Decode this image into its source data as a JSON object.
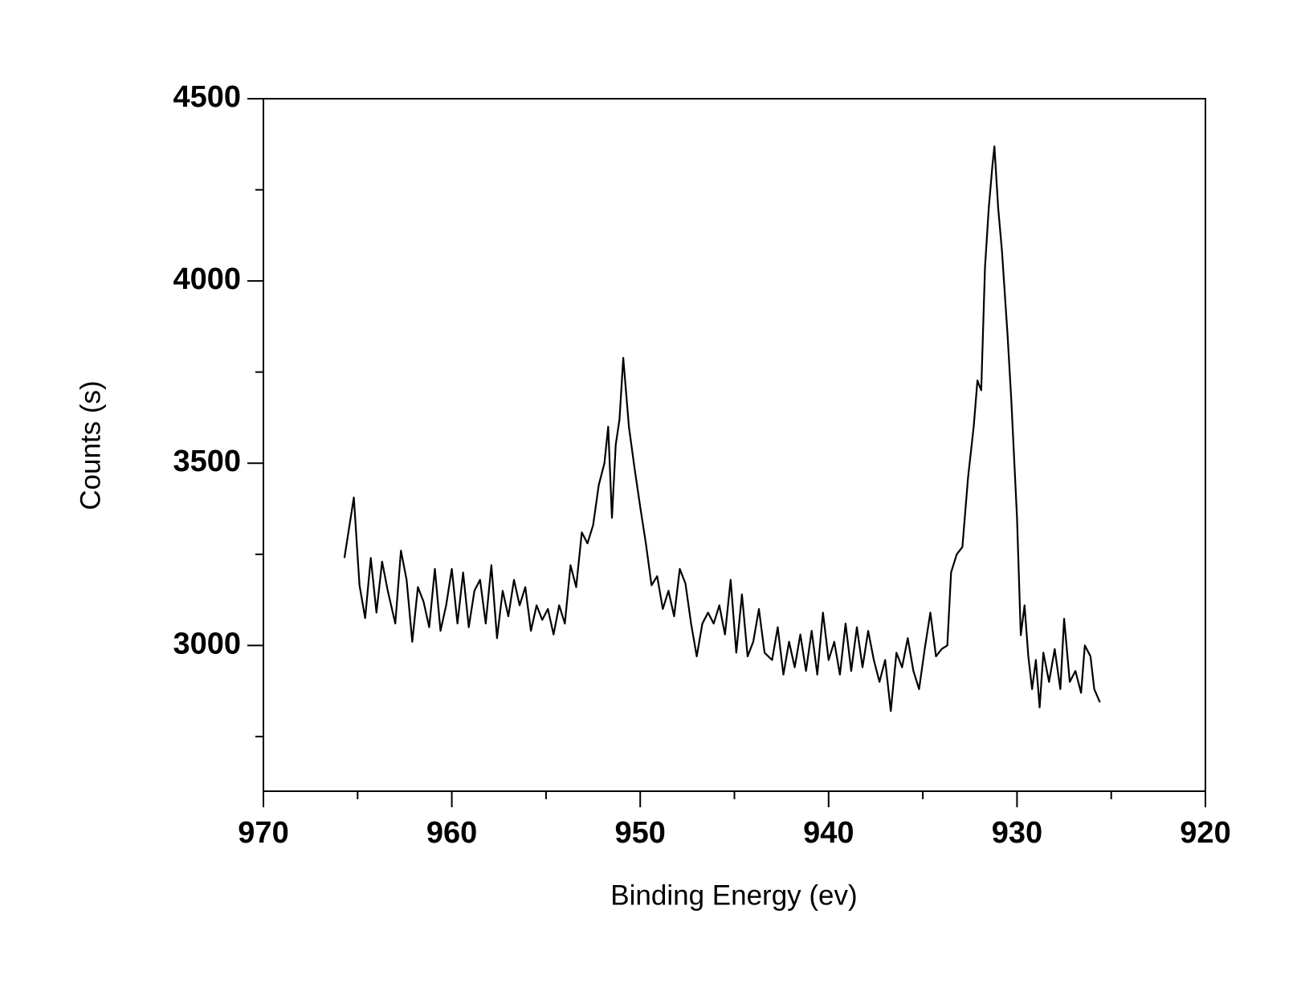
{
  "chart_data": {
    "type": "line",
    "x_label": "Binding Energy (ev)",
    "y_label": "Counts (s)",
    "xlim": [
      970,
      920
    ],
    "xticks": [
      970,
      960,
      950,
      940,
      930,
      920
    ],
    "xminorticks": [
      965,
      955,
      945,
      935,
      925
    ],
    "ylim": [
      2600,
      4500
    ],
    "yticks": [
      3000,
      3500,
      4000,
      4500
    ],
    "yminorticks": [
      2750,
      3250,
      3750,
      4250
    ],
    "grid": false,
    "series": [
      {
        "color": "#000000",
        "x": [
          965.7,
          965.2,
          964.9,
          964.6,
          964.3,
          964.0,
          963.7,
          963.4,
          963.0,
          962.7,
          962.4,
          962.1,
          961.8,
          961.5,
          961.2,
          960.9,
          960.6,
          960.3,
          960.0,
          959.7,
          959.4,
          959.1,
          958.8,
          958.5,
          958.2,
          957.9,
          957.6,
          957.3,
          957.0,
          956.7,
          956.4,
          956.1,
          955.8,
          955.5,
          955.2,
          954.9,
          954.6,
          954.3,
          954.0,
          953.7,
          953.4,
          953.1,
          952.8,
          952.5,
          952.2,
          951.9,
          951.7,
          951.5,
          951.3,
          951.1,
          950.9,
          950.6,
          950.3,
          950.0,
          949.7,
          949.4,
          949.1,
          948.8,
          948.5,
          948.2,
          947.9,
          947.6,
          947.3,
          947.0,
          946.7,
          946.4,
          946.1,
          945.8,
          945.5,
          945.2,
          944.9,
          944.6,
          944.3,
          944.0,
          943.7,
          943.4,
          943.0,
          942.7,
          942.4,
          942.1,
          941.8,
          941.5,
          941.2,
          940.9,
          940.6,
          940.3,
          940.0,
          939.7,
          939.4,
          939.1,
          938.8,
          938.5,
          938.2,
          937.9,
          937.6,
          937.3,
          937.0,
          936.7,
          936.4,
          936.1,
          935.8,
          935.5,
          935.2,
          934.9,
          934.6,
          934.3,
          934.0,
          933.7,
          933.5,
          933.2,
          932.9,
          932.6,
          932.3,
          932.1,
          931.9,
          931.7,
          931.5,
          931.3,
          931.2,
          931.0,
          930.8,
          930.5,
          930.3,
          930.0,
          929.8,
          929.6,
          929.4,
          929.2,
          929.0,
          928.8,
          928.6,
          928.3,
          928.0,
          927.7,
          927.5,
          927.2,
          926.9,
          926.6,
          926.4,
          926.1,
          925.9,
          925.6
        ],
        "values": [
          3240,
          3406,
          3165,
          3075,
          3240,
          3090,
          3230,
          3150,
          3060,
          3260,
          3180,
          3010,
          3160,
          3120,
          3050,
          3210,
          3040,
          3110,
          3210,
          3060,
          3200,
          3050,
          3150,
          3180,
          3060,
          3220,
          3020,
          3150,
          3080,
          3180,
          3110,
          3160,
          3040,
          3110,
          3070,
          3100,
          3030,
          3110,
          3060,
          3220,
          3160,
          3310,
          3280,
          3330,
          3440,
          3500,
          3600,
          3350,
          3550,
          3620,
          3789,
          3600,
          3486,
          3380,
          3280,
          3165,
          3190,
          3100,
          3150,
          3080,
          3210,
          3170,
          3060,
          2970,
          3060,
          3090,
          3060,
          3110,
          3030,
          3180,
          2980,
          3140,
          2970,
          3010,
          3100,
          2980,
          2960,
          3050,
          2920,
          3010,
          2940,
          3030,
          2930,
          3040,
          2920,
          3090,
          2960,
          3010,
          2920,
          3060,
          2930,
          3050,
          2940,
          3040,
          2960,
          2900,
          2960,
          2820,
          2980,
          2940,
          3020,
          2930,
          2880,
          2990,
          3090,
          2970,
          2990,
          3000,
          3200,
          3250,
          3270,
          3460,
          3600,
          3727,
          3700,
          4037,
          4200,
          4320,
          4369,
          4200,
          4083,
          3850,
          3670,
          3350,
          3028,
          3110,
          2970,
          2880,
          2960,
          2830,
          2980,
          2900,
          2990,
          2880,
          3073,
          2900,
          2930,
          2870,
          3000,
          2970,
          2880,
          2844
        ]
      }
    ]
  }
}
